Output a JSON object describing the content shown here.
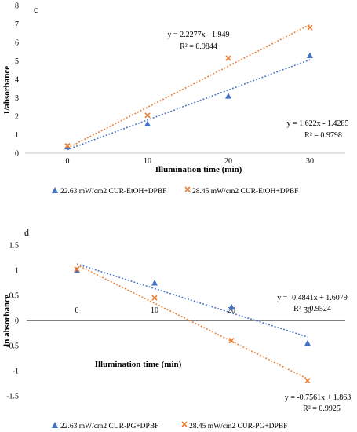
{
  "chart_data": [
    {
      "panel_label": "c",
      "type": "scatter",
      "xlabel": "Illumination time (min)",
      "ylabel": "1/absorbance",
      "x": [
        0,
        10,
        20,
        30
      ],
      "xticks": [
        "0",
        "10",
        "20",
        "30"
      ],
      "yticks": [
        "0",
        "1",
        "2",
        "3",
        "4",
        "5",
        "6",
        "7",
        "8"
      ],
      "ylim": [
        0,
        8
      ],
      "grid": false,
      "legend_position": "bottom",
      "series": [
        {
          "name": "22.63 mW/cm2 CUR-EtOH+DPBF",
          "marker": "triangle",
          "color": "#4472c4",
          "values": [
            0.35,
            1.6,
            3.1,
            5.3
          ],
          "trendline": {
            "slope": 1.622,
            "intercept": -1.4285
          },
          "equation": "y = 1.622x - 1.4285",
          "r2": "R² = 0.9798"
        },
        {
          "name": "28.45 mW/cm2 CUR-EtOH+DPBF",
          "marker": "x",
          "color": "#ed7d31",
          "values": [
            0.4,
            2.05,
            5.15,
            6.8
          ],
          "trendline": {
            "slope": 2.2277,
            "intercept": -1.949
          },
          "equation": "y = 2.2277x - 1.949",
          "r2": "R² = 0.9844"
        }
      ]
    },
    {
      "panel_label": "d",
      "type": "scatter",
      "xlabel": "Illumination time (min)",
      "ylabel": "ln absorbance",
      "x": [
        0,
        10,
        20,
        30
      ],
      "xticks": [
        "0",
        "10",
        "20",
        "30"
      ],
      "yticks": [
        "1.5",
        "1",
        "0.5",
        "0",
        "-0.5",
        "-1",
        "-1.5"
      ],
      "ylim": [
        -1.5,
        1.5
      ],
      "grid": false,
      "legend_position": "bottom",
      "series": [
        {
          "name": "22.63 mW/cm2 CUR-PG+DPBF",
          "marker": "triangle",
          "color": "#4472c4",
          "values": [
            1.0,
            0.75,
            0.27,
            -0.45
          ],
          "trendline": {
            "slope": -0.4841,
            "intercept": 1.6079
          },
          "equation": "y = -0.4841x + 1.6079",
          "r2": "R² = 0.9524"
        },
        {
          "name": "28.45 mW/cm2 CUR-PG+DPBF",
          "marker": "x",
          "color": "#ed7d31",
          "values": [
            1.02,
            0.45,
            -0.4,
            -1.2
          ],
          "trendline": {
            "slope": -0.7561,
            "intercept": 1.863
          },
          "equation": "y = -0.7561x + 1.863",
          "r2": "R² = 0.9925"
        }
      ]
    }
  ]
}
